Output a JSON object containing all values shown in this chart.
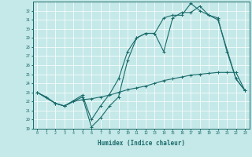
{
  "xlabel": "Humidex (Indice chaleur)",
  "bg_color": "#c5e8e8",
  "grid_color": "#ffffff",
  "line_color": "#1a6b6b",
  "xlim": [
    -0.5,
    23.5
  ],
  "ylim": [
    19,
    33
  ],
  "x_ticks": [
    0,
    1,
    2,
    3,
    4,
    5,
    6,
    7,
    8,
    9,
    10,
    11,
    12,
    13,
    14,
    15,
    16,
    17,
    18,
    19,
    20,
    21,
    22,
    23
  ],
  "y_ticks": [
    19,
    20,
    21,
    22,
    23,
    24,
    25,
    26,
    27,
    28,
    29,
    30,
    31,
    32
  ],
  "line1_x": [
    0,
    1,
    2,
    3,
    4,
    5,
    6,
    7,
    8,
    9,
    10,
    11,
    12,
    13,
    14,
    15,
    16,
    17,
    18,
    19,
    20,
    21,
    22,
    23
  ],
  "line1_y": [
    23.0,
    22.5,
    21.8,
    21.5,
    22.0,
    22.2,
    22.3,
    22.5,
    22.7,
    23.0,
    23.3,
    23.5,
    23.7,
    24.0,
    24.3,
    24.5,
    24.7,
    24.9,
    25.0,
    25.1,
    25.2,
    25.2,
    25.2,
    23.2
  ],
  "line2_x": [
    0,
    2,
    3,
    5,
    6,
    7,
    8,
    9,
    10,
    11,
    12,
    13,
    14,
    15,
    16,
    17,
    18,
    19,
    20,
    22,
    23
  ],
  "line2_y": [
    23.0,
    21.8,
    21.5,
    22.5,
    19.2,
    20.2,
    21.5,
    22.5,
    26.5,
    29.0,
    29.5,
    29.5,
    27.5,
    31.2,
    31.8,
    31.8,
    32.5,
    31.5,
    31.0,
    24.5,
    23.2
  ],
  "line3_x": [
    0,
    2,
    3,
    5,
    6,
    7,
    8,
    9,
    10,
    11,
    12,
    13,
    14,
    15,
    16,
    17,
    18,
    19,
    20,
    21,
    22,
    23
  ],
  "line3_y": [
    23.0,
    21.8,
    21.5,
    22.7,
    20.0,
    21.5,
    22.8,
    24.5,
    27.5,
    29.0,
    29.5,
    29.5,
    31.2,
    31.5,
    31.5,
    32.8,
    32.0,
    31.5,
    31.2,
    27.5,
    24.5,
    23.2
  ]
}
